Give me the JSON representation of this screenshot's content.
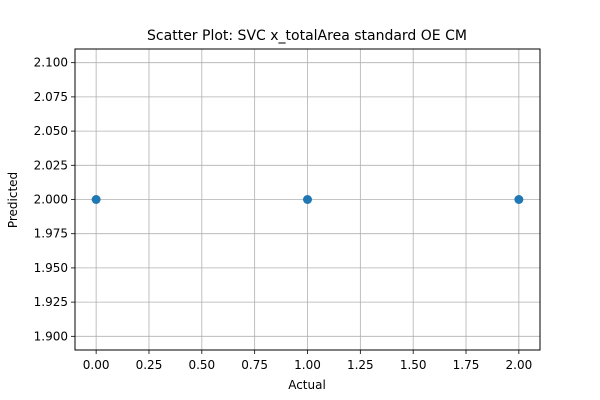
{
  "chart_data": {
    "type": "scatter",
    "title": "Scatter Plot: SVC x_totalArea standard OE CM",
    "xlabel": "Actual",
    "ylabel": "Predicted",
    "xlim": [
      -0.1,
      2.1
    ],
    "ylim": [
      1.89,
      2.11
    ],
    "grid": true,
    "x_ticks": [
      0.0,
      0.25,
      0.5,
      0.75,
      1.0,
      1.25,
      1.5,
      1.75,
      2.0
    ],
    "x_tick_labels": [
      "0.00",
      "0.25",
      "0.50",
      "0.75",
      "1.00",
      "1.25",
      "1.50",
      "1.75",
      "2.00"
    ],
    "y_ticks": [
      1.9,
      1.925,
      1.95,
      1.975,
      2.0,
      2.025,
      2.05,
      2.075,
      2.1
    ],
    "y_tick_labels": [
      "1.900",
      "1.925",
      "1.950",
      "1.975",
      "2.000",
      "2.025",
      "2.050",
      "2.075",
      "2.100"
    ],
    "series": [
      {
        "color": "#1f77b4",
        "x": [
          0,
          1,
          2
        ],
        "y": [
          2,
          2,
          2
        ]
      }
    ]
  }
}
